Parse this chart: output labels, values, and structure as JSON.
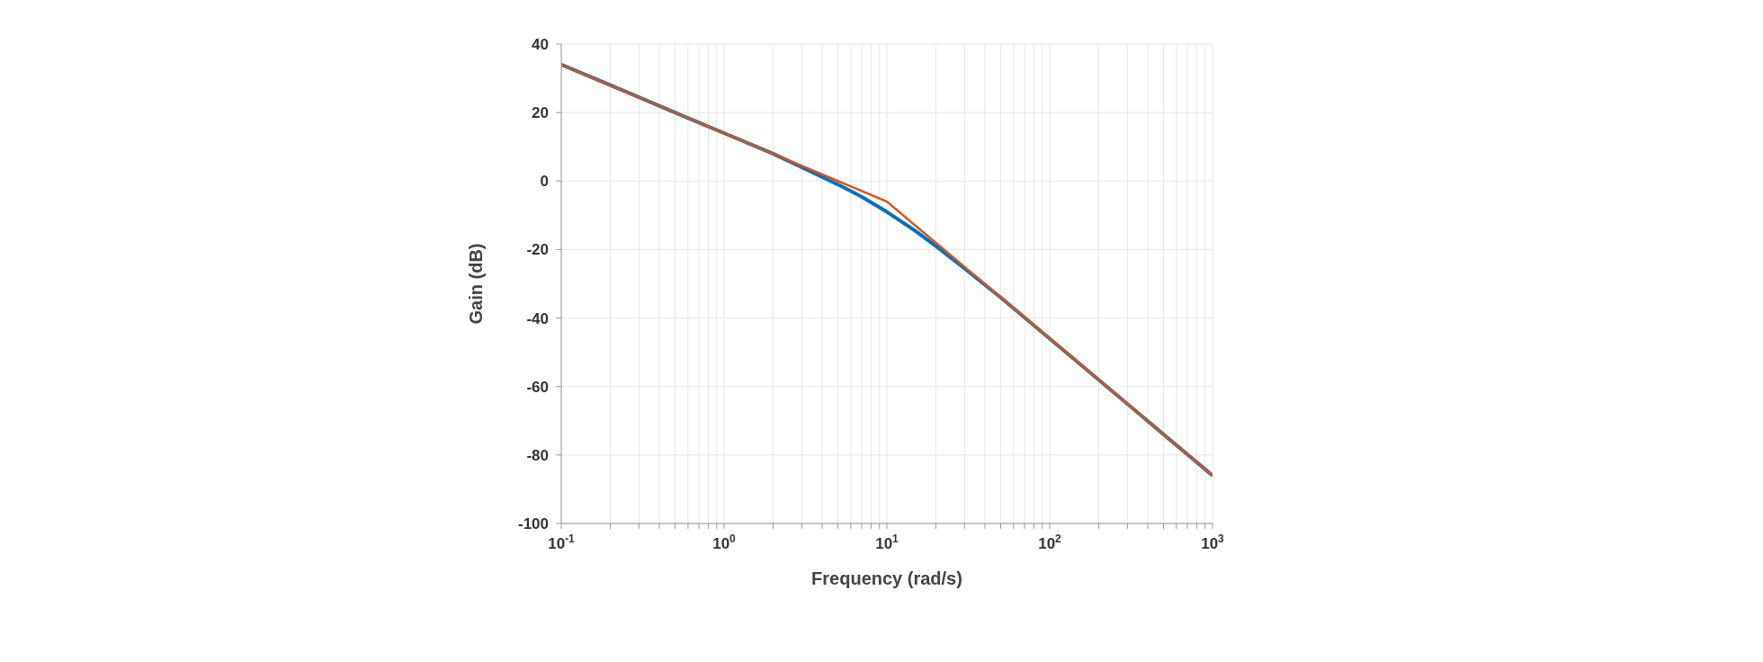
{
  "chart_data": {
    "type": "line",
    "xlabel": "Frequency (rad/s)",
    "ylabel": "Gain (dB)",
    "log": "x",
    "xlim": [
      0.1,
      1000
    ],
    "xticks": [
      {
        "value": 0.1,
        "label": "10$^{-1}$"
      },
      {
        "value": 0.2,
        "label": null
      },
      {
        "value": 0.3,
        "label": null
      },
      {
        "value": 0.4,
        "label": null
      },
      {
        "value": 0.5,
        "label": null
      },
      {
        "value": 0.6,
        "label": null
      },
      {
        "value": 0.7,
        "label": null
      },
      {
        "value": 0.8,
        "label": null
      },
      {
        "value": 0.9,
        "label": null
      },
      {
        "value": 1,
        "label": "10$^{0}$"
      },
      {
        "value": 2,
        "label": null
      },
      {
        "value": 3,
        "label": null
      },
      {
        "value": 4,
        "label": null
      },
      {
        "value": 5,
        "label": null
      },
      {
        "value": 6,
        "label": null
      },
      {
        "value": 7,
        "label": null
      },
      {
        "value": 8,
        "label": null
      },
      {
        "value": 9,
        "label": null
      },
      {
        "value": 10,
        "label": "10$^{1}$"
      },
      {
        "value": 20,
        "label": null
      },
      {
        "value": 30,
        "label": null
      },
      {
        "value": 40,
        "label": null
      },
      {
        "value": 50,
        "label": null
      },
      {
        "value": 60,
        "label": null
      },
      {
        "value": 70,
        "label": null
      },
      {
        "value": 80,
        "label": null
      },
      {
        "value": 90,
        "label": null
      },
      {
        "value": 100,
        "label": "10$^{2}$"
      },
      {
        "value": 200,
        "label": null
      },
      {
        "value": 300,
        "label": null
      },
      {
        "value": 400,
        "label": null
      },
      {
        "value": 500,
        "label": null
      },
      {
        "value": 600,
        "label": null
      },
      {
        "value": 700,
        "label": null
      },
      {
        "value": 800,
        "label": null
      },
      {
        "value": 900,
        "label": null
      },
      {
        "value": 1000,
        "label": "10$^{3}$"
      }
    ],
    "ylim": [
      -100,
      40
    ],
    "yticks": [
      -100,
      -80,
      -60,
      -40,
      -20,
      0,
      20,
      40
    ],
    "grid": true,
    "marker": "none",
    "line_style": "solid",
    "series": [
      {
        "color": "#0072bd",
        "x": [
          0.1,
          0.2,
          0.5,
          1,
          2,
          3,
          5,
          7,
          10,
          15,
          20,
          30,
          50,
          100,
          1000
        ],
        "values": [
          34,
          28,
          20,
          14,
          8,
          4,
          -1,
          -4.6,
          -9,
          -14.6,
          -19,
          -25.5,
          -34,
          -46,
          -86
        ]
      },
      {
        "color": "#d95319",
        "x": [
          0.1,
          10,
          1000
        ],
        "values": [
          34,
          -6,
          -86
        ]
      }
    ]
  }
}
